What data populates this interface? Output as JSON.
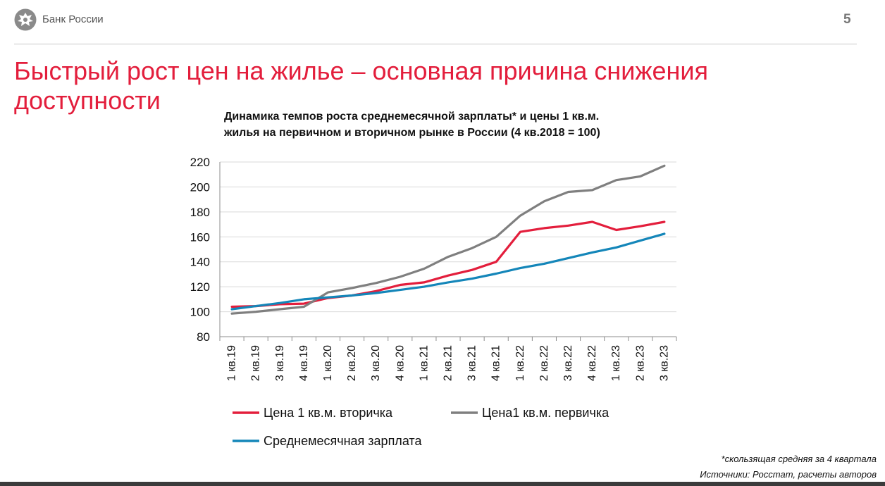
{
  "header": {
    "brand": "Банк России",
    "page_number": "5"
  },
  "title": "Быстрый рост цен на жилье – основная причина снижения доступности",
  "chart_data": {
    "type": "line",
    "title_lines": [
      "Динамика темпов роста среднемесячной зарплаты* и цены 1 кв.м.",
      "жилья на первичном и вторичном рынке в России (4 кв.2018 = 100)"
    ],
    "categories": [
      "1 кв.19",
      "2 кв.19",
      "3 кв.19",
      "4 кв.19",
      "1 кв.20",
      "2 кв.20",
      "3 кв.20",
      "4 кв.20",
      "1 кв.21",
      "2 кв.21",
      "3 кв.21",
      "4 кв.21",
      "1 кв.22",
      "2 кв.22",
      "3 кв.22",
      "4 кв.22",
      "1 кв.23",
      "2 кв.23",
      "3 кв.23"
    ],
    "ylim": [
      80,
      220
    ],
    "yticks": [
      80,
      100,
      120,
      140,
      160,
      180,
      200,
      220
    ],
    "grid": true,
    "legend_position": "bottom",
    "series": [
      {
        "name": "Цена 1 кв.м. вторичка",
        "color": "#e31e3c",
        "values": [
          104,
          104.5,
          106,
          106.5,
          111,
          113,
          116.5,
          121.5,
          123.5,
          129,
          133.5,
          140,
          164,
          167,
          169,
          172,
          165.5,
          168.5,
          172
        ]
      },
      {
        "name": "Цена1 кв.м. первичка",
        "color": "#7f7f7f",
        "values": [
          98.5,
          100,
          102,
          104,
          115.5,
          119,
          123,
          128,
          134.5,
          144,
          151,
          160,
          177,
          188.5,
          196,
          197.5,
          205.5,
          208.5,
          217
        ]
      },
      {
        "name": "Среднемесячная зарплата",
        "color": "#1486b9",
        "values": [
          102,
          104.5,
          107,
          110,
          111.5,
          113,
          115,
          117.5,
          120,
          123.5,
          126.5,
          130.5,
          135,
          138.5,
          143,
          147.5,
          151.5,
          157,
          162.5
        ]
      }
    ]
  },
  "footnote": {
    "line1": "*скользящая средняя за 4 квартала",
    "line2": "Источники: Росстат, расчеты авторов"
  }
}
